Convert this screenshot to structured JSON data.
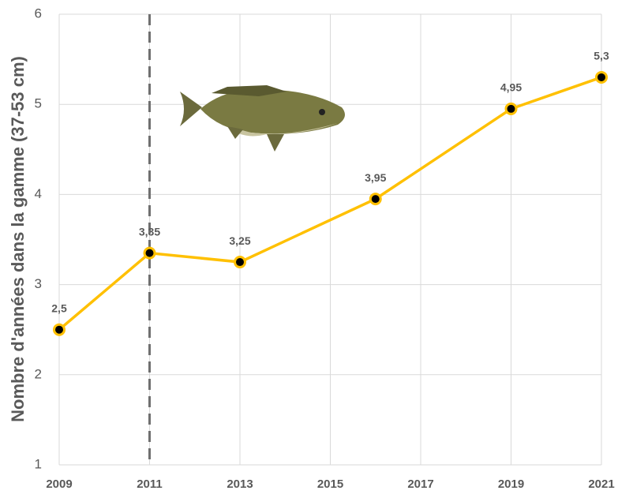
{
  "chart_data": {
    "type": "line",
    "y_label": "Nombre d'années dans la gamme (37-53 cm)",
    "x": [
      2009,
      2011,
      2013,
      2016,
      2019,
      2021
    ],
    "series": [
      {
        "name": "Nombre d'années",
        "color": "#ffc000",
        "values": [
          2.5,
          3.35,
          3.25,
          3.95,
          4.95,
          5.3
        ],
        "value_labels": [
          "2,5",
          "3,35",
          "3,25",
          "3,95",
          "4,95",
          "5,3"
        ]
      }
    ],
    "xlim": [
      2009,
      2021
    ],
    "xticks": [
      2009,
      2011,
      2013,
      2015,
      2017,
      2019,
      2021
    ],
    "ylim": [
      1,
      6
    ],
    "yticks": [
      1,
      2,
      3,
      4,
      5,
      6
    ],
    "grid": true,
    "vline": 2011
  }
}
